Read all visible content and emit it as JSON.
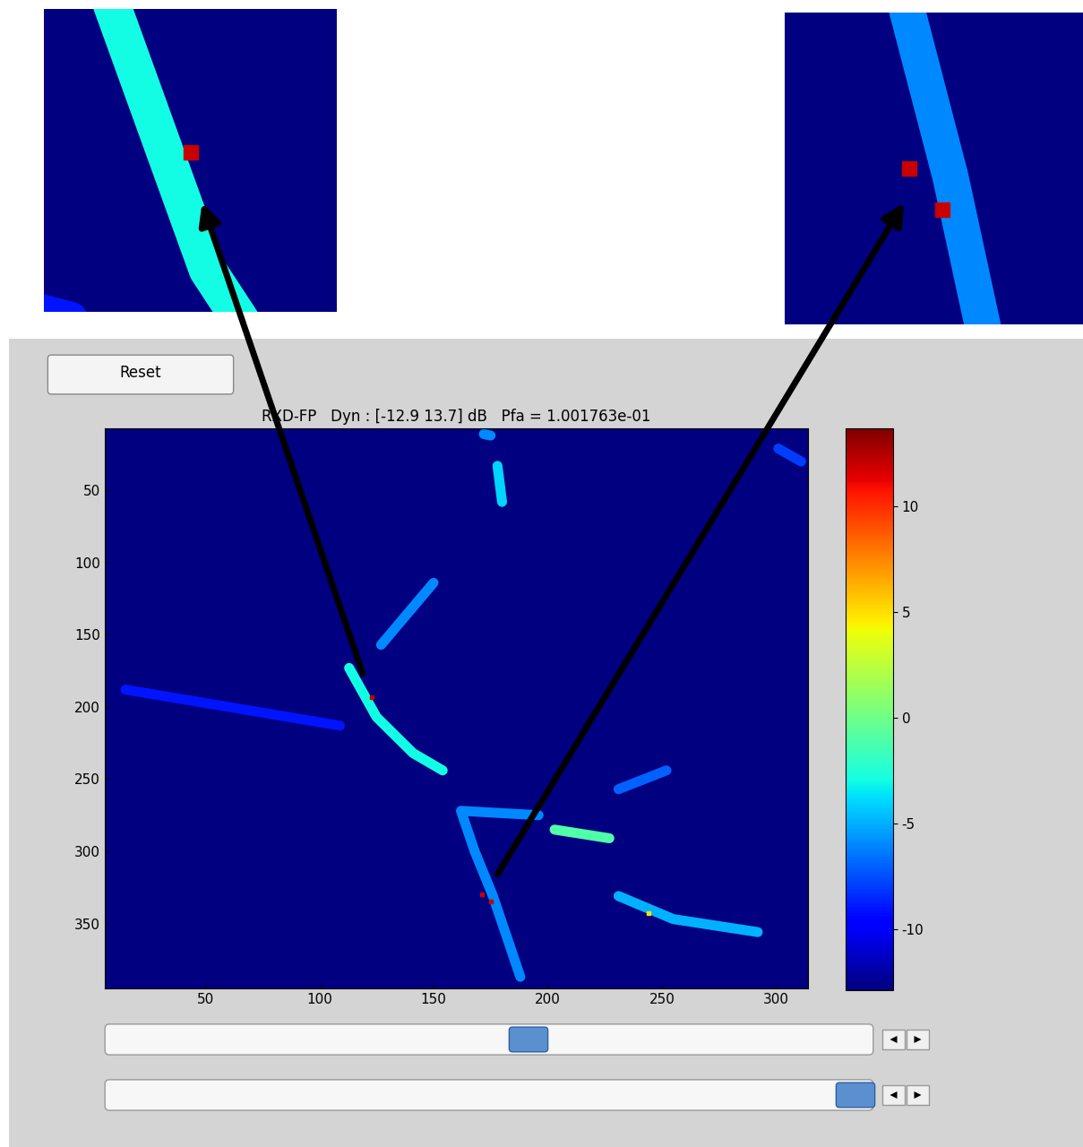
{
  "chart_data": {
    "type": "heatmap",
    "title": "RXD-FP   Dyn : [-12.9 13.7] dB   Pfa = 1.001763e-01",
    "xlim": [
      6,
      314
    ],
    "ylim": [
      395,
      7
    ],
    "xticks": [
      50,
      100,
      150,
      200,
      250,
      300
    ],
    "yticks": [
      50,
      100,
      150,
      200,
      250,
      300,
      350
    ],
    "colorbar": {
      "range": [
        -12.9,
        13.7
      ],
      "ticks": [
        -10,
        -5,
        0,
        5,
        10
      ]
    },
    "features": [
      {
        "path": [
          [
            113,
            173
          ],
          [
            125,
            207
          ],
          [
            141,
            232
          ],
          [
            154,
            244
          ]
        ],
        "value": -3
      },
      {
        "path": [
          [
            150,
            114
          ],
          [
            127,
            157
          ]
        ],
        "value": -6
      },
      {
        "path": [
          [
            178,
            33
          ],
          [
            180,
            58
          ]
        ],
        "value": -4
      },
      {
        "path": [
          [
            172,
            11
          ],
          [
            175,
            12
          ]
        ],
        "value": -6
      },
      {
        "path": [
          [
            196,
            275
          ],
          [
            162,
            272
          ],
          [
            168,
            300
          ],
          [
            176,
            331
          ],
          [
            188,
            387
          ]
        ],
        "value": -6
      },
      {
        "path": [
          [
            203,
            285
          ],
          [
            227,
            291
          ]
        ],
        "value": -1
      },
      {
        "path": [
          [
            231,
            331
          ],
          [
            255,
            347
          ],
          [
            292,
            356
          ]
        ],
        "value": -5
      },
      {
        "path": [
          [
            231,
            257
          ],
          [
            252,
            244
          ]
        ],
        "value": -7
      },
      {
        "path": [
          [
            15,
            188
          ],
          [
            109,
            213
          ]
        ],
        "value": -9
      },
      {
        "path": [
          [
            301,
            21
          ],
          [
            311,
            30
          ]
        ],
        "value": -8
      }
    ],
    "hotspots": [
      {
        "x": 123,
        "y": 193,
        "value": 12
      },
      {
        "x": 171,
        "y": 330,
        "value": 12
      },
      {
        "x": 175,
        "y": 335,
        "value": 12
      },
      {
        "x": 244,
        "y": 343,
        "value": 5
      }
    ],
    "insets": [
      {
        "xlim": [
          106,
          140
        ],
        "ylim": [
          212,
          176
        ]
      },
      {
        "xlim": [
          156,
          192
        ],
        "ylim": [
          349,
          311
        ]
      }
    ]
  },
  "controls": {
    "button": "Reset"
  }
}
